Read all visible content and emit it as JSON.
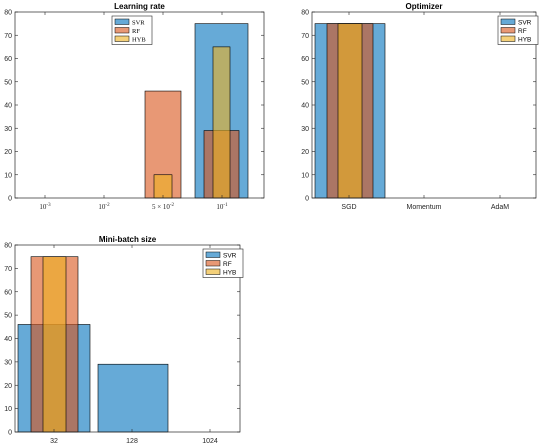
{
  "colors": {
    "SVR": "#0072BD",
    "RF": "#D95319",
    "HYB": "#EDB120"
  },
  "chart_data": [
    {
      "id": "lr",
      "type": "bar",
      "title": "Learning rate",
      "ylim": [
        0,
        80
      ],
      "yticks": [
        0,
        10,
        20,
        30,
        40,
        50,
        60,
        70,
        80
      ],
      "categories": [
        {
          "base": "10",
          "exp": "-3"
        },
        {
          "base": "10",
          "exp": "-2"
        },
        {
          "pre": "5 × 10",
          "exp": "-2"
        },
        {
          "base": "10",
          "exp": "-1"
        }
      ],
      "series": [
        {
          "name": "SVR",
          "values": [
            0,
            0,
            0,
            75
          ]
        },
        {
          "name": "RF",
          "values": [
            0,
            0,
            46,
            29
          ]
        },
        {
          "name": "HYB",
          "values": [
            0,
            0,
            10,
            65
          ]
        }
      ],
      "legend": "top-right"
    },
    {
      "id": "opt",
      "type": "bar",
      "title": "Optimizer",
      "ylim": [
        0,
        80
      ],
      "yticks": [
        0,
        10,
        20,
        30,
        40,
        50,
        60,
        70,
        80
      ],
      "categories": [
        {
          "text": "SGD"
        },
        {
          "text": "Momentum"
        },
        {
          "text": "AdaM"
        }
      ],
      "series": [
        {
          "name": "SVR",
          "values": [
            75,
            0,
            0
          ]
        },
        {
          "name": "RF",
          "values": [
            75,
            0,
            0
          ]
        },
        {
          "name": "HYB",
          "values": [
            75,
            0,
            0
          ]
        }
      ],
      "legend": "top-right"
    },
    {
      "id": "mb",
      "type": "bar",
      "title": "Mini-batch size",
      "ylim": [
        0,
        80
      ],
      "yticks": [
        0,
        10,
        20,
        30,
        40,
        50,
        60,
        70,
        80
      ],
      "categories": [
        {
          "text": "32"
        },
        {
          "text": "128"
        },
        {
          "text": "1024"
        }
      ],
      "series": [
        {
          "name": "SVR",
          "values": [
            46,
            29,
            0
          ]
        },
        {
          "name": "RF",
          "values": [
            75,
            0,
            0
          ]
        },
        {
          "name": "HYB",
          "values": [
            75,
            0,
            0
          ]
        }
      ],
      "legend": "top-right"
    }
  ]
}
